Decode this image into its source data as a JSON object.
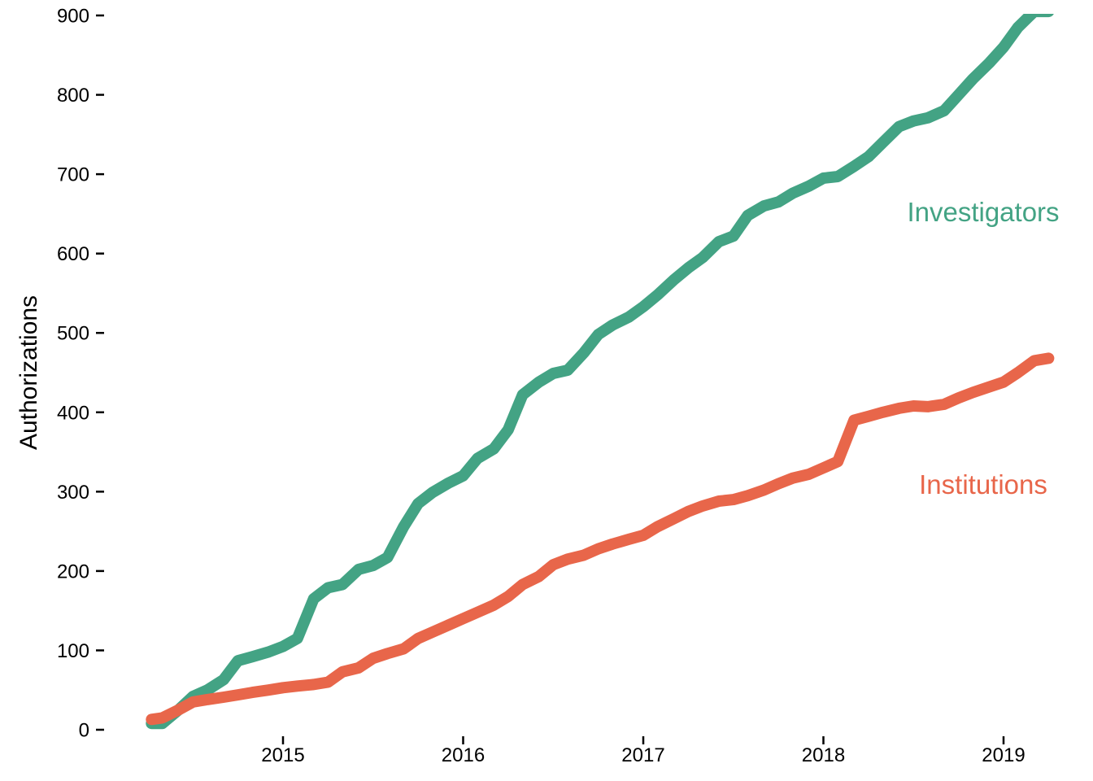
{
  "colors": {
    "investigators": "#43A384",
    "institutions": "#E8664A",
    "axis": "#000000"
  },
  "chart_data": {
    "type": "line",
    "ylabel": "Authorizations",
    "xlabel": "",
    "ylim": [
      0,
      900
    ],
    "xlim": [
      2014.25,
      2019.25
    ],
    "yticks": [
      0,
      100,
      200,
      300,
      400,
      500,
      600,
      700,
      800,
      900
    ],
    "xticks": [
      2015,
      2016,
      2017,
      2018,
      2019
    ],
    "ytick_labels": [
      "0",
      "100",
      "200",
      "300",
      "400",
      "500",
      "600",
      "700",
      "800",
      "900"
    ],
    "xtick_labels": [
      "2015",
      "2016",
      "2017",
      "2018",
      "2019"
    ],
    "grid": false,
    "legend": "direct labels at right",
    "series": [
      {
        "name": "Investigators",
        "color": "#43A384",
        "x": [
          2014.6,
          2014.66,
          2014.75,
          2014.83,
          2014.91,
          2015.0,
          2015.08,
          2015.16,
          2015.25,
          2015.33,
          2015.41,
          2015.5,
          2015.58,
          2015.66,
          2015.75,
          2015.83,
          2015.91,
          2016.0,
          2016.08,
          2016.16,
          2016.25,
          2016.33,
          2016.41,
          2016.5,
          2016.58,
          2016.66,
          2016.75,
          2016.83,
          2016.91,
          2017.0,
          2017.08,
          2017.16,
          2017.25,
          2017.33,
          2017.41,
          2017.5,
          2017.58,
          2017.66,
          2017.75,
          2017.83,
          2017.91,
          2018.0,
          2018.08,
          2018.16,
          2018.25,
          2018.33,
          2018.41,
          2018.5,
          2018.58,
          2018.66,
          2018.75,
          2018.83,
          2018.91,
          2019.0,
          2019.08,
          2019.16,
          2019.25,
          2019.33,
          2019.41,
          2019.5,
          2019.58
        ],
        "y": [
          8,
          8,
          25,
          42,
          50,
          63,
          87,
          92,
          98,
          105,
          115,
          165,
          179,
          183,
          202,
          207,
          217,
          256,
          285,
          299,
          311,
          320,
          342,
          354,
          378,
          422,
          438,
          449,
          453,
          475,
          498,
          510,
          520,
          533,
          548,
          567,
          582,
          595,
          615,
          622,
          648,
          660,
          665,
          676,
          685,
          695,
          697,
          710,
          722,
          740,
          760,
          767,
          771,
          780,
          800,
          820,
          840,
          860,
          885,
          905,
          905
        ]
      },
      {
        "name": "Institutions",
        "color": "#E8664A",
        "x": [
          2014.6,
          2014.66,
          2014.75,
          2014.83,
          2014.91,
          2015.0,
          2015.08,
          2015.16,
          2015.25,
          2015.33,
          2015.41,
          2015.5,
          2015.58,
          2015.66,
          2015.75,
          2015.83,
          2015.91,
          2016.0,
          2016.08,
          2016.16,
          2016.25,
          2016.33,
          2016.41,
          2016.5,
          2016.58,
          2016.66,
          2016.75,
          2016.83,
          2016.91,
          2017.0,
          2017.08,
          2017.16,
          2017.25,
          2017.33,
          2017.41,
          2017.5,
          2017.58,
          2017.66,
          2017.75,
          2017.83,
          2017.91,
          2018.0,
          2018.08,
          2018.16,
          2018.25,
          2018.33,
          2018.41,
          2018.5,
          2018.58,
          2018.66,
          2018.75,
          2018.83,
          2018.91,
          2019.0,
          2019.08,
          2019.16,
          2019.25,
          2019.33,
          2019.41,
          2019.5,
          2019.58
        ],
        "y": [
          13,
          15,
          25,
          35,
          38,
          41,
          44,
          47,
          50,
          53,
          55,
          57,
          60,
          73,
          78,
          90,
          96,
          102,
          115,
          123,
          132,
          140,
          148,
          157,
          168,
          183,
          193,
          208,
          215,
          220,
          228,
          234,
          240,
          245,
          256,
          266,
          275,
          282,
          288,
          290,
          295,
          302,
          310,
          317,
          322,
          330,
          338,
          390,
          395,
          400,
          405,
          408,
          407,
          410,
          418,
          425,
          432,
          438,
          450,
          465,
          468
        ]
      }
    ]
  }
}
